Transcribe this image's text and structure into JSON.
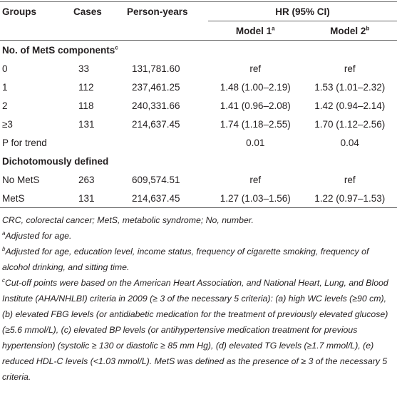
{
  "table": {
    "header": {
      "groups": "Groups",
      "cases": "Cases",
      "person_years": "Person-years",
      "hr": "HR (95% CI)",
      "model1": "Model 1",
      "model1_mark": "a",
      "model2": "Model 2",
      "model2_mark": "b"
    },
    "sections": [
      {
        "title": "No. of MetS components",
        "title_mark": "c",
        "rows": [
          [
            "0",
            "33",
            "131,781.60",
            "ref",
            "ref"
          ],
          [
            "1",
            "112",
            "237,461.25",
            "1.48 (1.00–2.19)",
            "1.53 (1.01–2.32)"
          ],
          [
            "2",
            "118",
            "240,331.66",
            "1.41 (0.96–2.08)",
            "1.42 (0.94–2.14)"
          ],
          [
            "≥3",
            "131",
            "214,637.45",
            "1.74 (1.18–2.55)",
            "1.70 (1.12–2.56)"
          ],
          [
            "P for trend",
            "",
            "",
            "0.01",
            "0.04"
          ]
        ]
      },
      {
        "title": "Dichotomously defined",
        "rows": [
          [
            "No MetS",
            "263",
            "609,574.51",
            "ref",
            "ref"
          ],
          [
            "MetS",
            "131",
            "214,637.45",
            "1.27 (1.03–1.56)",
            "1.22 (0.97–1.53)"
          ]
        ]
      }
    ]
  },
  "footnotes": [
    {
      "text": "CRC, colorectal cancer; MetS, metabolic syndrome; No, number."
    },
    {
      "mark": "a",
      "text": "Adjusted for age."
    },
    {
      "mark": "b",
      "text": "Adjusted for age, education level, income status, frequency of cigarette smoking, frequency of alcohol drinking, and sitting time."
    },
    {
      "mark": "c",
      "text": "Cut-off points were based on the American Heart Association, and National Heart, Lung, and Blood Institute (AHA/NHLBI) criteria in 2009 (≥ 3 of the necessary 5 criteria): (a) high WC levels (≥90 cm), (b) elevated FBG levels (or antidiabetic medication for the treatment of previously elevated glucose) (≥5.6 mmol/L), (c) elevated BP levels (or antihypertensive medication treatment for previous hypertension) (systolic ≥ 130 or diastolic ≥ 85 mm Hg), (d) elevated TG levels (≥1.7 mmol/L), (e) reduced HDL-C levels (&lt;1.03 mmol/L). MetS was defined as the presence of ≥ 3 of the necessary 5 criteria."
    }
  ]
}
